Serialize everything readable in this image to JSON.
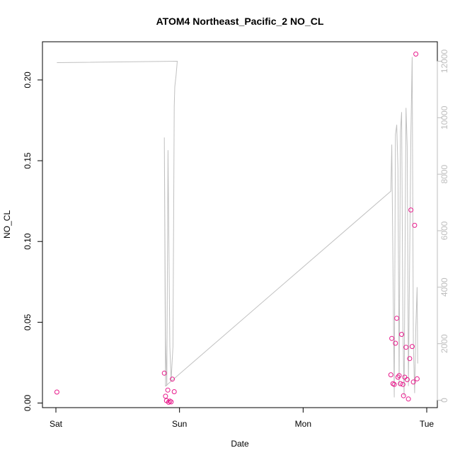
{
  "chart_data": {
    "type": "scatter",
    "title": "ATOM4 Northeast_Pacific_2 NO_CL",
    "xlabel": "Date",
    "ylabel": "NO_CL",
    "x_range_days": [
      0,
      3
    ],
    "x_ticks": [
      {
        "value": 0,
        "label": "Sat"
      },
      {
        "value": 1,
        "label": "Sun"
      },
      {
        "value": 2,
        "label": "Mon"
      },
      {
        "value": 3,
        "label": "Tue"
      }
    ],
    "ylim": [
      0,
      0.22
    ],
    "y_ticks": [
      {
        "value": 0,
        "label": "0.00"
      },
      {
        "value": 0.05,
        "label": "0.05"
      },
      {
        "value": 0.1,
        "label": "0.10"
      },
      {
        "value": 0.15,
        "label": "0.15"
      },
      {
        "value": 0.2,
        "label": "0.20"
      }
    ],
    "y2lim": [
      0,
      12500
    ],
    "y2_ticks": [
      {
        "value": 0,
        "label": "0"
      },
      {
        "value": 2000,
        "label": "2000"
      },
      {
        "value": 4000,
        "label": "4000"
      },
      {
        "value": 6000,
        "label": "6000"
      },
      {
        "value": 8000,
        "label": "8000"
      },
      {
        "value": 10000,
        "label": "10000"
      },
      {
        "value": 12000,
        "label": "12000"
      }
    ],
    "grid": false,
    "colors": {
      "points": "#e8198b",
      "line": "#c0c0c0"
    },
    "points": [
      {
        "x": 0.008,
        "y": 0.0068
      },
      {
        "x": 0.877,
        "y": 0.0185
      },
      {
        "x": 0.887,
        "y": 0.0042
      },
      {
        "x": 0.895,
        "y": 0.0015
      },
      {
        "x": 0.905,
        "y": 0.008
      },
      {
        "x": 0.912,
        "y": 0.0005
      },
      {
        "x": 0.922,
        "y": 0.0012
      },
      {
        "x": 0.932,
        "y": 0.0007
      },
      {
        "x": 0.942,
        "y": 0.0148
      },
      {
        "x": 0.957,
        "y": 0.007
      },
      {
        "x": 2.71,
        "y": 0.0175
      },
      {
        "x": 2.717,
        "y": 0.04
      },
      {
        "x": 2.727,
        "y": 0.012
      },
      {
        "x": 2.737,
        "y": 0.0115
      },
      {
        "x": 2.747,
        "y": 0.037
      },
      {
        "x": 2.757,
        "y": 0.0525
      },
      {
        "x": 2.767,
        "y": 0.016
      },
      {
        "x": 2.777,
        "y": 0.017
      },
      {
        "x": 2.787,
        "y": 0.012
      },
      {
        "x": 2.797,
        "y": 0.0425
      },
      {
        "x": 2.807,
        "y": 0.0115
      },
      {
        "x": 2.812,
        "y": 0.0045
      },
      {
        "x": 2.822,
        "y": 0.016
      },
      {
        "x": 2.832,
        "y": 0.0345
      },
      {
        "x": 2.842,
        "y": 0.0145
      },
      {
        "x": 2.852,
        "y": 0.0025
      },
      {
        "x": 2.862,
        "y": 0.0275
      },
      {
        "x": 2.872,
        "y": 0.1195
      },
      {
        "x": 2.882,
        "y": 0.035
      },
      {
        "x": 2.892,
        "y": 0.013
      },
      {
        "x": 2.902,
        "y": 0.11
      },
      {
        "x": 2.912,
        "y": 0.216
      },
      {
        "x": 2.922,
        "y": 0.015
      }
    ],
    "line_series": [
      {
        "x": 0.008,
        "y": 11950
      },
      {
        "x": 0.982,
        "y": 12000
      },
      {
        "x": 0.972,
        "y": 11500
      },
      {
        "x": 0.962,
        "y": 11100
      },
      {
        "x": 0.957,
        "y": 10400
      },
      {
        "x": 0.947,
        "y": 1900
      },
      {
        "x": 0.932,
        "y": 700
      },
      {
        "x": 0.922,
        "y": 1900
      },
      {
        "x": 0.907,
        "y": 8850
      },
      {
        "x": 0.897,
        "y": 500
      },
      {
        "x": 0.887,
        "y": 2200
      },
      {
        "x": 0.877,
        "y": 9300
      },
      {
        "x": 0.887,
        "y": 500
      },
      {
        "x": 2.71,
        "y": 7400
      },
      {
        "x": 2.717,
        "y": 9050
      },
      {
        "x": 2.737,
        "y": 100
      },
      {
        "x": 2.747,
        "y": 9400
      },
      {
        "x": 2.757,
        "y": 9750
      },
      {
        "x": 2.767,
        "y": 8200
      },
      {
        "x": 2.777,
        "y": 500
      },
      {
        "x": 2.787,
        "y": 9500
      },
      {
        "x": 2.797,
        "y": 10200
      },
      {
        "x": 2.807,
        "y": 2600
      },
      {
        "x": 2.817,
        "y": 150
      },
      {
        "x": 2.832,
        "y": 10350
      },
      {
        "x": 2.842,
        "y": 9000
      },
      {
        "x": 2.852,
        "y": 500
      },
      {
        "x": 2.872,
        "y": 9400
      },
      {
        "x": 2.882,
        "y": 12150
      },
      {
        "x": 2.892,
        "y": 2000
      },
      {
        "x": 2.902,
        "y": 250
      },
      {
        "x": 2.912,
        "y": 2600
      },
      {
        "x": 2.922,
        "y": 4000
      },
      {
        "x": 2.927,
        "y": 1300
      }
    ]
  }
}
